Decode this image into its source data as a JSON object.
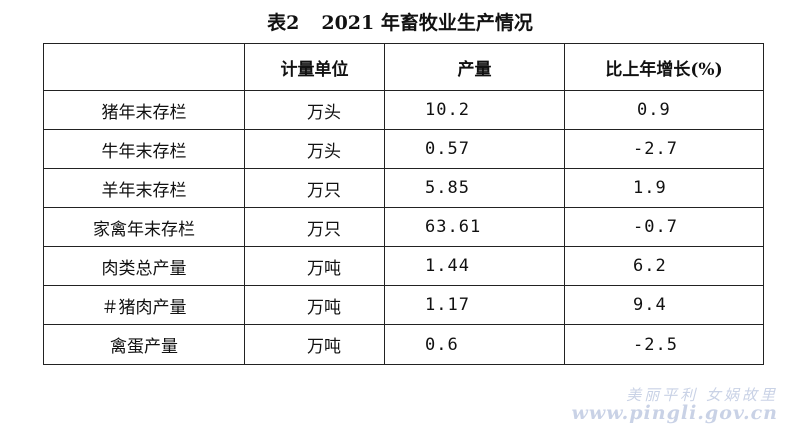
{
  "title": {
    "label": "表2",
    "text": "2021 年畜牧业生产情况"
  },
  "table": {
    "headers": [
      "",
      "计量单位",
      "产量",
      "比上年增长(%)"
    ],
    "rows": [
      {
        "item": "猪年末存栏",
        "unit": "万头",
        "output": "10.2",
        "change": "0.9"
      },
      {
        "item": "牛年末存栏",
        "unit": "万头",
        "output": "0.57",
        "change": "-2.7"
      },
      {
        "item": "羊年末存栏",
        "unit": "万只",
        "output": "5.85",
        "change": "1.9"
      },
      {
        "item": "家禽年末存栏",
        "unit": "万只",
        "output": "63.61",
        "change": "-0.7"
      },
      {
        "item": "肉类总产量",
        "unit": "万吨",
        "output": "1.44",
        "change": "6.2"
      },
      {
        "item": "＃猪肉产量",
        "unit": "万吨",
        "output": "1.17",
        "change": "9.4"
      },
      {
        "item": "禽蛋产量",
        "unit": "万吨",
        "output": "0.6",
        "change": "-2.5"
      }
    ]
  },
  "watermark": {
    "line1": "美丽平利 女娲故里",
    "line2": "www.pingli.gov.cn"
  }
}
